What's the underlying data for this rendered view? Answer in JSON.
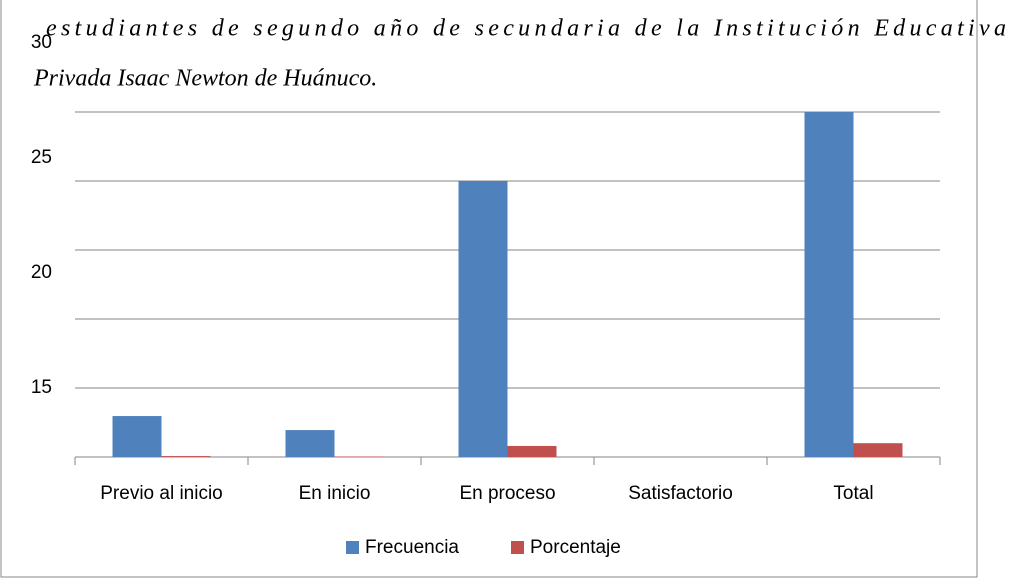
{
  "chart_data": {
    "type": "bar",
    "title_lines": [
      "estudiantes de segundo año de secundaria de la Institución Educativa",
      "Privada Isaac Newton de Huánuco."
    ],
    "categories": [
      "Previo al inicio",
      "En inicio",
      "En proceso",
      "Satisfactorio",
      "Total"
    ],
    "series": [
      {
        "name": "Frecuencia",
        "color": "#4f81bd",
        "values": [
          13.78,
          13.17,
          24,
          null,
          27
        ]
      },
      {
        "name": "Porcentaje",
        "color": "#c0504d",
        "values": [
          12.04,
          12.02,
          12.48,
          null,
          12.6
        ]
      }
    ],
    "ylim": [
      12,
      30
    ],
    "yticks": [
      15,
      20,
      25,
      30
    ],
    "gridlines": [
      15,
      18,
      21,
      24,
      27
    ],
    "grid": true,
    "legend": "bottom"
  }
}
